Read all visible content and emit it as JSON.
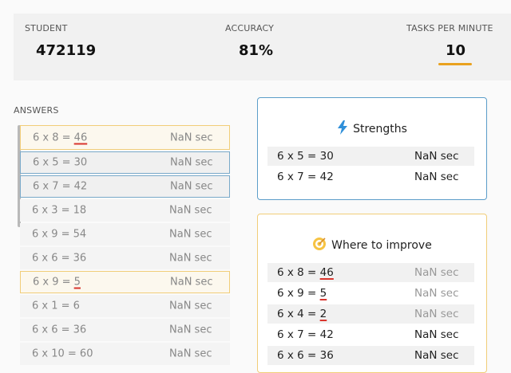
{
  "stats": {
    "student_label": "STUDENT",
    "student_value": "472119",
    "accuracy_label": "ACCURACY",
    "accuracy_value": "81%",
    "tpm_label": "TASKS PER MINUTE",
    "tpm_value": "10",
    "accent_color": "#e9a21f"
  },
  "answers": {
    "title": "ANSWERS",
    "rows": [
      {
        "eq": "6 x 8 = ",
        "ans": "46",
        "time": "NaN  sec"
      },
      {
        "eq": "6 x 5 = 30",
        "time": "NaN  sec"
      },
      {
        "eq": "6 x 7 = 42",
        "time": "NaN  sec"
      },
      {
        "eq": "6 x 3 = 18",
        "time": "NaN  sec"
      },
      {
        "eq": "6 x 9 = 54",
        "time": "NaN  sec"
      },
      {
        "eq": "6 x 6 = 36",
        "time": "NaN  sec"
      },
      {
        "eq": "6 x 9 = ",
        "ans": "5",
        "time": "NaN  sec"
      },
      {
        "eq": "6 x 1 = 6",
        "time": "NaN  sec"
      },
      {
        "eq": "6 x 6 = 36",
        "time": "NaN  sec"
      },
      {
        "eq": "6 x 10 = 60",
        "time": "NaN  sec"
      }
    ]
  },
  "strengths": {
    "title": "Strengths",
    "icon": "lightning-icon",
    "rows": [
      {
        "eq": "6 x 5 = 30",
        "time": "NaN  sec"
      },
      {
        "eq": "6 x 7 = 42",
        "time": "NaN  sec"
      }
    ]
  },
  "improve": {
    "title": "Where to improve",
    "icon": "target-icon",
    "rows": [
      {
        "eq": "6 x 8 = ",
        "ans": "46",
        "time": "NaN  sec"
      },
      {
        "eq": "6 x 9 = ",
        "ans": "5",
        "time": "NaN  sec"
      },
      {
        "eq": "6 x 4 = ",
        "ans": "2",
        "time": "NaN  sec"
      },
      {
        "eq": "6 x 7 = 42",
        "time": "NaN  sec"
      },
      {
        "eq": "6 x 6 = 36",
        "time": "NaN  sec"
      }
    ]
  }
}
